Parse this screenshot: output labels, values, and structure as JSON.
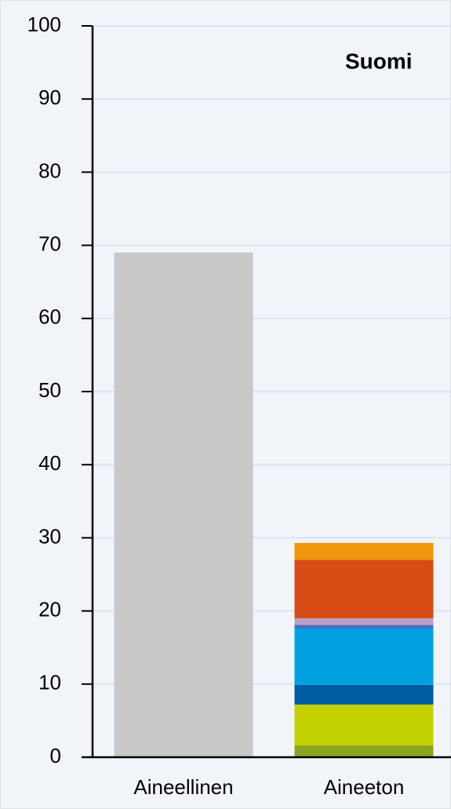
{
  "chart_data": {
    "type": "stacked_bar",
    "title": "Suomi",
    "categories": [
      "Aineellinen",
      "Aineeton"
    ],
    "series": [
      {
        "color": "#c8c8c8",
        "values": [
          69.0,
          null
        ]
      },
      {
        "color": "#8aa51e",
        "values": [
          null,
          1.6
        ]
      },
      {
        "color": "#c3d200",
        "values": [
          null,
          5.6
        ]
      },
      {
        "color": "#005ba0",
        "values": [
          null,
          2.7
        ]
      },
      {
        "color": "#00a0e1",
        "values": [
          null,
          7.7
        ]
      },
      {
        "color": "#4a6fc0",
        "values": [
          null,
          0.5
        ]
      },
      {
        "color": "#b9a0c8",
        "values": [
          null,
          0.9
        ]
      },
      {
        "color": "#d64c14",
        "values": [
          null,
          8.0
        ]
      },
      {
        "color": "#f0960a",
        "values": [
          null,
          2.3
        ]
      }
    ],
    "ylim": [
      0,
      100
    ],
    "yticks": [
      0,
      10,
      20,
      30,
      40,
      50,
      60,
      70,
      80,
      90,
      100
    ],
    "grid": true
  }
}
